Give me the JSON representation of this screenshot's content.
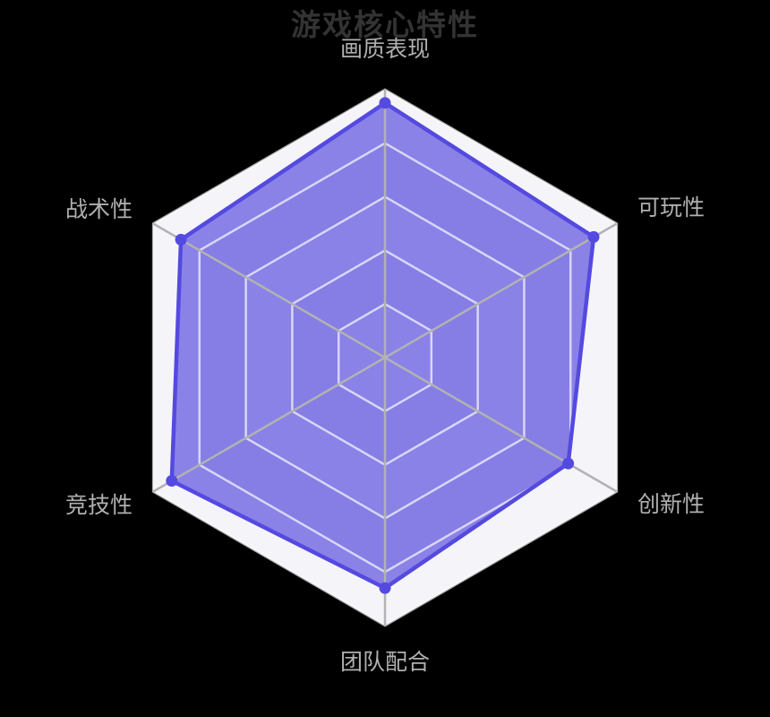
{
  "chart_data": {
    "type": "radar",
    "title": "游戏核心特性",
    "levels": 5,
    "indicators": [
      {
        "name": "画质表现",
        "max": 100
      },
      {
        "name": "可玩性",
        "max": 100
      },
      {
        "name": "创新性",
        "max": 100
      },
      {
        "name": "团队配合",
        "max": 100
      },
      {
        "name": "竞技性",
        "max": 100
      },
      {
        "name": "战术性",
        "max": 100
      }
    ],
    "series": [
      {
        "values": [
          95,
          90,
          79,
          86,
          92,
          88
        ]
      }
    ],
    "legend": "none",
    "grid": "hexagonal, 5 split levels, split lines on",
    "colors": {
      "background": "#000000",
      "title": "#333333",
      "label": "#b0b0b0",
      "series_line": "#544ae0",
      "series_fill": "rgba(82,70,222,0.66)",
      "axis_line": "#b2b2b2",
      "split_line": "rgba(255,255,255,0.68)",
      "split_area": [
        "#f5f5f9",
        "#e9e9f0"
      ]
    }
  }
}
